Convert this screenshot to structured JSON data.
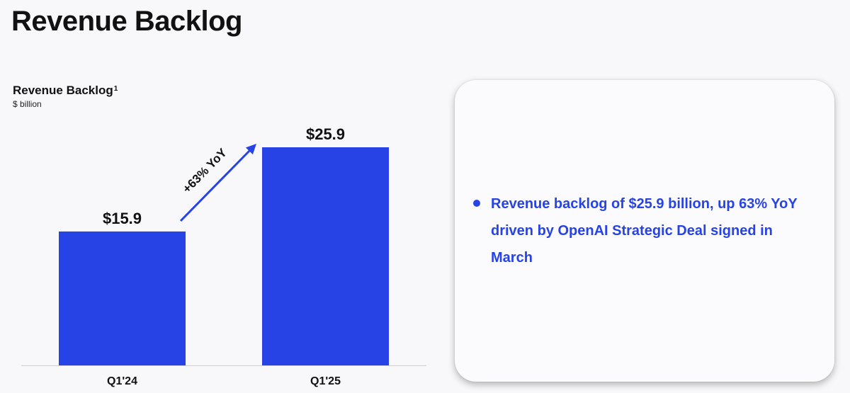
{
  "page": {
    "title": "Revenue Backlog"
  },
  "chart_title": {
    "text": "Revenue Backlog",
    "footnote_mark": "1",
    "unit": "$ billion"
  },
  "chart_data": {
    "type": "bar",
    "title": "Revenue Backlog",
    "subtitle": "$ billion",
    "categories": [
      "Q1'24",
      "Q1'25"
    ],
    "values": [
      15.9,
      25.9
    ],
    "data_labels": [
      "$15.9",
      "$25.9"
    ],
    "ylim": [
      0,
      25.9
    ],
    "grid": false,
    "annotation": "+63% YoY",
    "bar_color": "#2743e5"
  },
  "callout": {
    "items": [
      "Revenue backlog of $25.9 billion, up 63% YoY driven by OpenAI Strategic Deal signed in March"
    ]
  },
  "colors": {
    "accent": "#2743e5",
    "background": "#f8f8fa"
  }
}
